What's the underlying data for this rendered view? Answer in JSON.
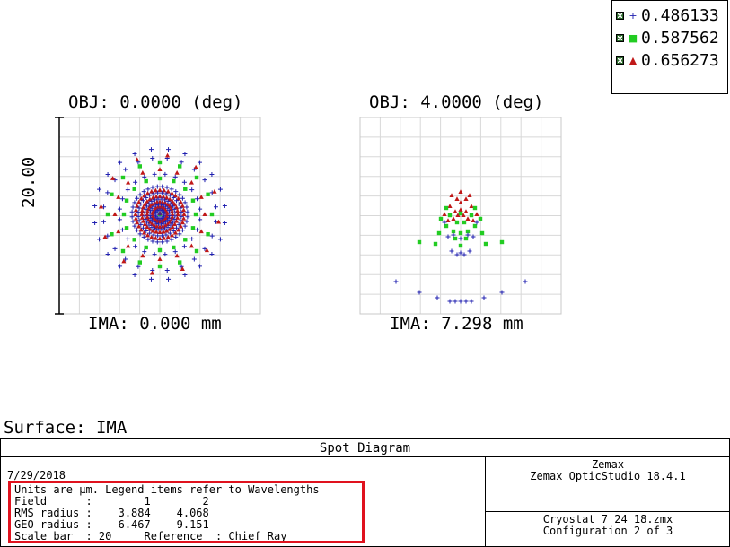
{
  "legend": {
    "items": [
      {
        "symbol": "+",
        "value": "0.486133",
        "color": "#2020b0"
      },
      {
        "symbol": "■",
        "value": "0.587562",
        "color": "#22cc22"
      },
      {
        "symbol": "▲",
        "value": "0.656273",
        "color": "#c01818"
      }
    ]
  },
  "plots": [
    {
      "obj_label": "OBJ: 0.0000 (deg)",
      "ima_label": "IMA: 0.000 mm"
    },
    {
      "obj_label": "OBJ: 4.0000 (deg)",
      "ima_label": "IMA: 7.298 mm"
    }
  ],
  "scale_label": "20.00",
  "surface_label": "Surface: IMA",
  "info": {
    "title": "Spot Diagram",
    "date": "7/29/2018",
    "lines": [
      "Units are µm. Legend items refer to Wavelengths",
      "Field      :        1        2",
      "RMS radius :    3.884    4.068",
      "GEO radius :    6.467    9.151",
      "Scale bar  : 20     Reference  : Chief Ray"
    ],
    "company": "Zemax",
    "software": "Zemax OpticStudio 18.4.1",
    "file": "Cryostat_7_24_18.zmx",
    "config": "Configuration 2 of 3"
  }
}
